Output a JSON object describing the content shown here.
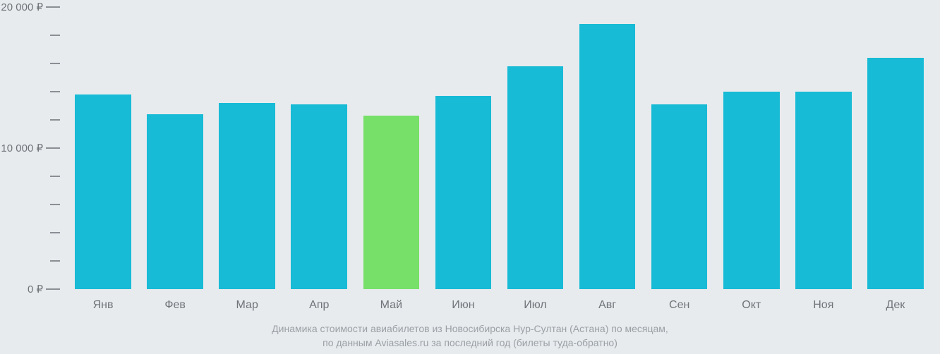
{
  "chart": {
    "type": "bar",
    "background_color": "#e8ebee",
    "bar_width_pct": 78,
    "y_axis": {
      "min": 0,
      "max": 20000,
      "major_ticks": [
        0,
        10000,
        20000
      ],
      "minor_ticks": [
        2000,
        4000,
        6000,
        8000,
        12000,
        14000,
        16000,
        18000
      ],
      "labels": {
        "0": "0 ₽",
        "10000": "10 000 ₽",
        "20000": "20 000 ₽"
      },
      "label_fontsize": 15,
      "label_color": "#6f7479",
      "tick_color": "#8a8f94"
    },
    "default_bar_color": "#18bbd6",
    "highlight_bar_color": "#76e069",
    "categories": [
      "Янв",
      "Фев",
      "Мар",
      "Апр",
      "Май",
      "Июн",
      "Июл",
      "Авг",
      "Сен",
      "Окт",
      "Ноя",
      "Дек"
    ],
    "values": [
      13800,
      12400,
      13200,
      13100,
      12300,
      13700,
      15800,
      18800,
      13100,
      14000,
      14000,
      16400
    ],
    "highlight_index": 4,
    "x_label_fontsize": 16,
    "x_label_color": "#6f7479"
  },
  "caption": {
    "line1": "Динамика стоимости авиабилетов из Новосибирска Нур-Султан (Астана) по месяцам,",
    "line2": "по данным Aviasales.ru за последний год (билеты туда-обратно)",
    "color": "#9aa0a5",
    "fontsize": 14
  }
}
